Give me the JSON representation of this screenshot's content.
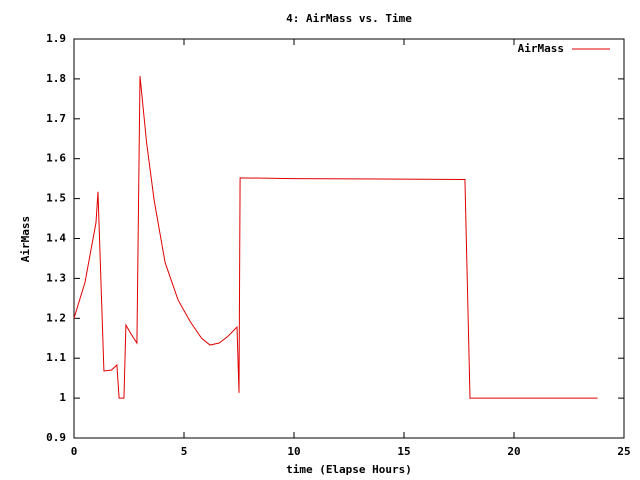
{
  "chart_data": {
    "type": "line",
    "title": "4: AirMass vs. Time",
    "x_label": "time (Elapse Hours)",
    "y_label": "AirMass",
    "x": [
      0,
      0.5,
      1.0,
      1.09,
      1.36,
      1.7,
      1.95,
      2.05,
      2.27,
      2.36,
      2.6,
      2.86,
      3.0,
      3.3,
      3.64,
      4.14,
      4.73,
      5.3,
      5.8,
      6.18,
      6.6,
      7.0,
      7.41,
      7.5,
      7.55,
      10,
      17.77,
      18.0,
      23.8
    ],
    "series": [
      {
        "name": "AirMass",
        "color": "#e00000",
        "values": [
          1.2,
          1.29,
          1.44,
          1.517,
          1.068,
          1.07,
          1.083,
          1.0,
          1.0,
          1.183,
          1.16,
          1.138,
          1.807,
          1.64,
          1.497,
          1.34,
          1.246,
          1.19,
          1.15,
          1.133,
          1.138,
          1.155,
          1.178,
          1.013,
          1.552,
          1.55,
          1.548,
          1.0,
          1.0
        ]
      }
    ],
    "xlim": [
      0,
      25
    ],
    "xticks": [
      0,
      5,
      10,
      15,
      20,
      25
    ],
    "ylim": [
      0.9,
      1.9
    ],
    "yticks": [
      0.9,
      1,
      1.1,
      1.2,
      1.3,
      1.4,
      1.5,
      1.6,
      1.7,
      1.8,
      1.9
    ],
    "legend": "top-right"
  }
}
